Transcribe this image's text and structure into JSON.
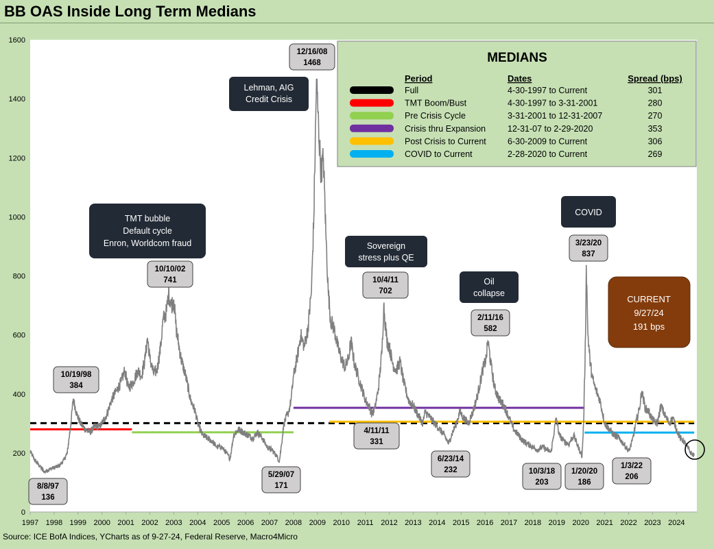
{
  "chart_data": {
    "type": "line",
    "title": "BB OAS Inside Long Term Medians",
    "source": "Source: ICE BofA Indices, YCharts as of 9-27-24, Federal Reserve, Macro4Micro",
    "xlabel": "",
    "ylabel": "",
    "ylim": [
      0,
      1600
    ],
    "yticks": [
      "0",
      "200",
      "400",
      "600",
      "800",
      "1000",
      "1200",
      "1400",
      "1600"
    ],
    "xticks": [
      "1997",
      "1998",
      "1999",
      "2000",
      "2001",
      "2002",
      "2003",
      "2004",
      "2005",
      "2006",
      "2007",
      "2008",
      "2009",
      "2010",
      "2011",
      "2012",
      "2013",
      "2014",
      "2015",
      "2016",
      "2017",
      "2018",
      "2019",
      "2020",
      "2021",
      "2022",
      "2023",
      "2024"
    ],
    "grid": false,
    "colors": {
      "line": "#7f7f7f",
      "plot_bg": "#ffffff",
      "frame_bg": "#c6e0b4",
      "dark_box": "#222a35",
      "label_box": "#d0cece",
      "current_box": "#843c0c"
    },
    "series": [
      {
        "values": [
          [
            1997.0,
            205
          ],
          [
            1997.2,
            175
          ],
          [
            1997.45,
            150
          ],
          [
            1997.6,
            136
          ],
          [
            1997.8,
            145
          ],
          [
            1998.0,
            150
          ],
          [
            1998.2,
            155
          ],
          [
            1998.4,
            175
          ],
          [
            1998.55,
            200
          ],
          [
            1998.7,
            300
          ],
          [
            1998.8,
            384
          ],
          [
            1998.95,
            330
          ],
          [
            1999.1,
            300
          ],
          [
            1999.3,
            280
          ],
          [
            1999.5,
            270
          ],
          [
            1999.7,
            290
          ],
          [
            1999.9,
            290
          ],
          [
            2000.0,
            300
          ],
          [
            2000.2,
            330
          ],
          [
            2000.4,
            380
          ],
          [
            2000.6,
            410
          ],
          [
            2000.8,
            440
          ],
          [
            2000.95,
            480
          ],
          [
            2001.1,
            420
          ],
          [
            2001.3,
            440
          ],
          [
            2001.5,
            480
          ],
          [
            2001.65,
            460
          ],
          [
            2001.8,
            520
          ],
          [
            2001.9,
            590
          ],
          [
            2002.0,
            520
          ],
          [
            2002.15,
            470
          ],
          [
            2002.3,
            480
          ],
          [
            2002.45,
            560
          ],
          [
            2002.55,
            650
          ],
          [
            2002.7,
            680
          ],
          [
            2002.78,
            741
          ],
          [
            2002.9,
            700
          ],
          [
            2003.0,
            720
          ],
          [
            2003.1,
            620
          ],
          [
            2003.3,
            520
          ],
          [
            2003.5,
            460
          ],
          [
            2003.7,
            380
          ],
          [
            2003.9,
            340
          ],
          [
            2004.0,
            300
          ],
          [
            2004.2,
            260
          ],
          [
            2004.4,
            250
          ],
          [
            2004.6,
            240
          ],
          [
            2004.8,
            220
          ],
          [
            2005.0,
            220
          ],
          [
            2005.2,
            200
          ],
          [
            2005.35,
            180
          ],
          [
            2005.5,
            260
          ],
          [
            2005.7,
            280
          ],
          [
            2005.9,
            270
          ],
          [
            2006.1,
            260
          ],
          [
            2006.3,
            250
          ],
          [
            2006.5,
            270
          ],
          [
            2006.7,
            250
          ],
          [
            2006.9,
            220
          ],
          [
            2007.1,
            210
          ],
          [
            2007.3,
            190
          ],
          [
            2007.41,
            171
          ],
          [
            2007.5,
            230
          ],
          [
            2007.6,
            300
          ],
          [
            2007.8,
            340
          ],
          [
            2007.9,
            380
          ],
          [
            2008.0,
            460
          ],
          [
            2008.15,
            520
          ],
          [
            2008.3,
            600
          ],
          [
            2008.45,
            560
          ],
          [
            2008.6,
            620
          ],
          [
            2008.75,
            750
          ],
          [
            2008.85,
            1000
          ],
          [
            2008.96,
            1468
          ],
          [
            2009.05,
            1300
          ],
          [
            2009.15,
            1150
          ],
          [
            2009.25,
            1200
          ],
          [
            2009.35,
            950
          ],
          [
            2009.45,
            750
          ],
          [
            2009.55,
            650
          ],
          [
            2009.7,
            620
          ],
          [
            2009.85,
            560
          ],
          [
            2010.0,
            520
          ],
          [
            2010.15,
            490
          ],
          [
            2010.3,
            520
          ],
          [
            2010.4,
            580
          ],
          [
            2010.55,
            500
          ],
          [
            2010.7,
            460
          ],
          [
            2010.85,
            420
          ],
          [
            2011.0,
            380
          ],
          [
            2011.15,
            360
          ],
          [
            2011.28,
            331
          ],
          [
            2011.4,
            350
          ],
          [
            2011.55,
            420
          ],
          [
            2011.7,
            550
          ],
          [
            2011.77,
            702
          ],
          [
            2011.9,
            580
          ],
          [
            2012.0,
            560
          ],
          [
            2012.15,
            500
          ],
          [
            2012.3,
            480
          ],
          [
            2012.45,
            510
          ],
          [
            2012.6,
            440
          ],
          [
            2012.8,
            380
          ],
          [
            2013.0,
            360
          ],
          [
            2013.2,
            330
          ],
          [
            2013.4,
            300
          ],
          [
            2013.5,
            340
          ],
          [
            2013.7,
            320
          ],
          [
            2013.9,
            300
          ],
          [
            2014.1,
            280
          ],
          [
            2014.3,
            260
          ],
          [
            2014.48,
            232
          ],
          [
            2014.6,
            260
          ],
          [
            2014.8,
            300
          ],
          [
            2014.95,
            340
          ],
          [
            2015.1,
            320
          ],
          [
            2015.3,
            300
          ],
          [
            2015.5,
            340
          ],
          [
            2015.7,
            400
          ],
          [
            2015.9,
            480
          ],
          [
            2016.05,
            520
          ],
          [
            2016.12,
            582
          ],
          [
            2016.25,
            500
          ],
          [
            2016.4,
            420
          ],
          [
            2016.6,
            380
          ],
          [
            2016.8,
            360
          ],
          [
            2017.0,
            320
          ],
          [
            2017.2,
            280
          ],
          [
            2017.4,
            260
          ],
          [
            2017.6,
            240
          ],
          [
            2017.8,
            230
          ],
          [
            2018.0,
            220
          ],
          [
            2018.2,
            210
          ],
          [
            2018.4,
            220
          ],
          [
            2018.6,
            210
          ],
          [
            2018.76,
            203
          ],
          [
            2018.9,
            280
          ],
          [
            2018.98,
            320
          ],
          [
            2019.1,
            260
          ],
          [
            2019.3,
            240
          ],
          [
            2019.5,
            230
          ],
          [
            2019.7,
            260
          ],
          [
            2019.9,
            220
          ],
          [
            2020.0,
            200
          ],
          [
            2020.05,
            186
          ],
          [
            2020.12,
            300
          ],
          [
            2020.2,
            600
          ],
          [
            2020.23,
            837
          ],
          [
            2020.3,
            600
          ],
          [
            2020.4,
            500
          ],
          [
            2020.5,
            450
          ],
          [
            2020.6,
            420
          ],
          [
            2020.8,
            380
          ],
          [
            2021.0,
            300
          ],
          [
            2021.2,
            280
          ],
          [
            2021.4,
            260
          ],
          [
            2021.6,
            250
          ],
          [
            2021.8,
            230
          ],
          [
            2022.01,
            206
          ],
          [
            2022.15,
            240
          ],
          [
            2022.3,
            300
          ],
          [
            2022.45,
            350
          ],
          [
            2022.55,
            410
          ],
          [
            2022.7,
            350
          ],
          [
            2022.85,
            340
          ],
          [
            2023.0,
            310
          ],
          [
            2023.2,
            300
          ],
          [
            2023.35,
            360
          ],
          [
            2023.5,
            330
          ],
          [
            2023.7,
            300
          ],
          [
            2023.85,
            320
          ],
          [
            2024.0,
            280
          ],
          [
            2024.15,
            250
          ],
          [
            2024.3,
            240
          ],
          [
            2024.45,
            220
          ],
          [
            2024.6,
            200
          ],
          [
            2024.74,
            191
          ]
        ]
      }
    ],
    "medians": [
      {
        "label": "Full",
        "dates": "4-30-1997  to Current",
        "spread": "301",
        "color": "#000000",
        "dashed": true,
        "x0": 1997.0,
        "x1": 2024.74,
        "y": 301
      },
      {
        "label": "TMT Boom/Bust",
        "dates": "4-30-1997 to 3-31-2001",
        "spread": "280",
        "color": "#ff0000",
        "dashed": false,
        "x0": 1997.0,
        "x1": 2001.25,
        "y": 280
      },
      {
        "label": "Pre Crisis Cycle",
        "dates": "3-31-2001  to 12-31-2007",
        "spread": "270",
        "color": "#92d050",
        "dashed": false,
        "x0": 2001.25,
        "x1": 2008.0,
        "y": 270
      },
      {
        "label": "Crisis thru Expansion",
        "dates": "12-31-07  to 2-29-2020",
        "spread": "353",
        "color": "#7030a0",
        "dashed": false,
        "x0": 2008.0,
        "x1": 2020.16,
        "y": 353
      },
      {
        "label": "Post Crisis to Current",
        "dates": "6-30-2009  to Current",
        "spread": "306",
        "color": "#ffc000",
        "dashed": false,
        "x0": 2009.5,
        "x1": 2024.74,
        "y": 306
      },
      {
        "label": "COVID to Current",
        "dates": " 2-28-2020  to Current",
        "spread": "269",
        "color": "#00b0f0",
        "dashed": false,
        "x0": 2020.16,
        "x1": 2024.74,
        "y": 269
      }
    ],
    "legend": {
      "title": "MEDIANS",
      "col_period": "Period",
      "col_dates": "Dates",
      "col_spread": "Spread (bps)",
      "position": "top-right"
    },
    "events": [
      {
        "lines": [
          "Lehman, AIG",
          "Credit Crisis"
        ]
      },
      {
        "lines": [
          "TMT bubble",
          "Default cycle",
          "Enron, Worldcom fraud"
        ]
      },
      {
        "lines": [
          "Sovereign",
          "stress plus QE"
        ]
      },
      {
        "lines": [
          "Oil",
          "collapse"
        ]
      },
      {
        "lines": [
          "COVID"
        ]
      }
    ],
    "points": [
      {
        "date": "12/16/08",
        "value": "1468"
      },
      {
        "date": "10/10/02",
        "value": "741"
      },
      {
        "date": "10/4/11",
        "value": "702"
      },
      {
        "date": "3/23/20",
        "value": "837"
      },
      {
        "date": "2/11/16",
        "value": "582"
      },
      {
        "date": "10/19/98",
        "value": "384"
      },
      {
        "date": "4/11/11",
        "value": "331"
      },
      {
        "date": "6/23/14",
        "value": "232"
      },
      {
        "date": "5/29/07",
        "value": "171"
      },
      {
        "date": "8/8/97",
        "value": "136"
      },
      {
        "date": "10/3/18",
        "value": "203"
      },
      {
        "date": "1/20/20",
        "value": "186"
      },
      {
        "date": "1/3/22",
        "value": "206"
      }
    ],
    "current": {
      "lines": [
        "CURRENT",
        "9/27/24",
        " 191 bps"
      ]
    }
  }
}
